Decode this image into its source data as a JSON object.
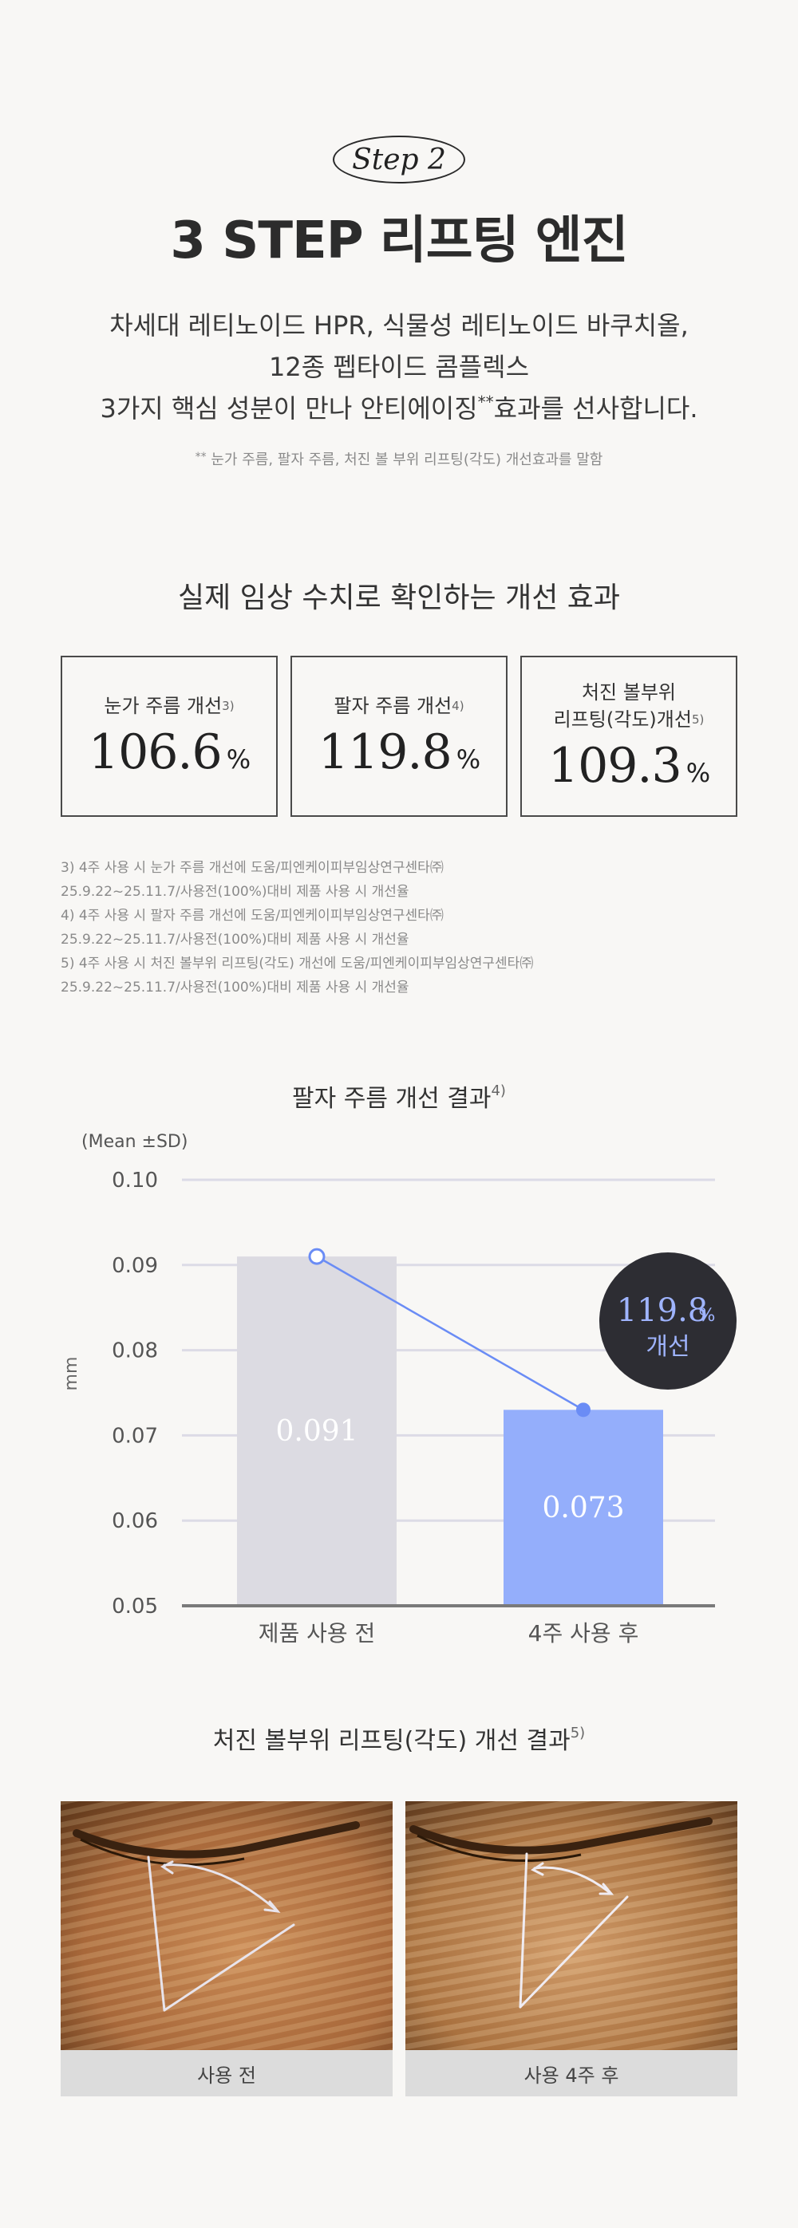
{
  "header": {
    "step_label": "Step 2",
    "title": "3 STEP 리프팅 엔진",
    "intro_line1": "차세대 레티노이드 HPR, 식물성 레티노이드 바쿠치올,",
    "intro_line2": "12종 펩타이드 콤플렉스",
    "intro_line3_a": "3가지 핵심 성분이 만나 안티에이징",
    "intro_line3_mark": "**",
    "intro_line3_b": "효과를 선사합니다.",
    "footnote_mark": "**",
    "footnote": "눈가 주름, 팔자 주름, 처진 볼 부위 리프팅(각도) 개선효과를 말함"
  },
  "clinical": {
    "title": "실제 임상 수치로 확인하는 개선 효과",
    "cards": [
      {
        "label_line1": "눈가 주름 개선",
        "label_line2": "",
        "ref": "3)",
        "value": "106.6",
        "unit": "%"
      },
      {
        "label_line1": "팔자 주름 개선",
        "label_line2": "",
        "ref": "4)",
        "value": "119.8",
        "unit": "%"
      },
      {
        "label_line1": "처진 볼부위",
        "label_line2": "리프팅(각도)개선",
        "ref": "5)",
        "value": "109.3",
        "unit": "%"
      }
    ],
    "refs": [
      "3) 4주 사용 시 눈가 주름 개선에 도움/피엔케이피부임상연구센타㈜",
      "25.9.22~25.11.7/사용전(100%)대비 제품 사용 시 개선율",
      "4) 4주 사용 시 팔자 주름 개선에 도움/피엔케이피부임상연구센타㈜",
      "25.9.22~25.11.7/사용전(100%)대비 제품 사용 시 개선율",
      "5) 4주 사용 시 처진 볼부위 리프팅(각도) 개선에 도움/피엔케이피부임상연구센타㈜",
      "25.9.22~25.11.7/사용전(100%)대비 제품 사용 시 개선율"
    ]
  },
  "chart_section": {
    "title": "팔자 주름 개선 결과",
    "ref": "4)"
  },
  "chart_data": {
    "type": "bar",
    "categories": [
      "제품 사용 전",
      "4주 사용 후"
    ],
    "values": [
      0.091,
      0.073
    ],
    "value_labels": [
      "0.091",
      "0.073"
    ],
    "bar_colors": [
      "#dcdbe2",
      "#94aefb"
    ],
    "line_color": "#6a8cf5",
    "ylabel": "mm",
    "legend_note": "(Mean ±SD)",
    "ylim": [
      0.05,
      0.1
    ],
    "yticks": [
      "0.10",
      "0.09",
      "0.08",
      "0.07",
      "0.06",
      "0.05"
    ],
    "ytick_values": [
      0.1,
      0.09,
      0.08,
      0.07,
      0.06,
      0.05
    ],
    "grid": true,
    "badge_value": "119.8",
    "badge_unit": "%",
    "badge_label": "개선",
    "badge_color": "#2d2d33",
    "badge_text_color": "#9fb4ff"
  },
  "photo_section": {
    "title": "처진 볼부위 리프팅(각도) 개선 결과",
    "ref": "5)",
    "photos": [
      {
        "caption": "사용 전"
      },
      {
        "caption": "사용 4주 후"
      }
    ]
  }
}
